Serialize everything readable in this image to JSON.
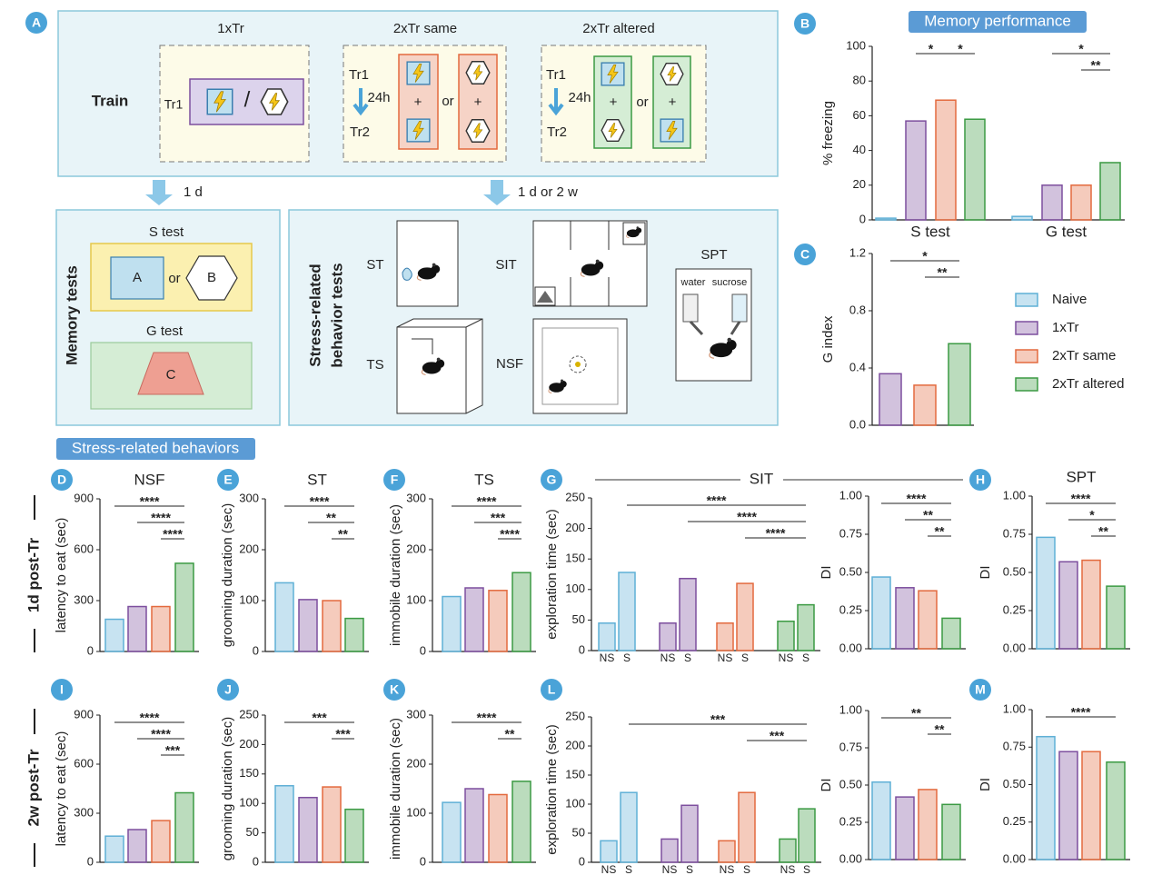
{
  "headers": {
    "memory": "Memory performance",
    "stress": "Stress-related behaviors",
    "row1": "1d post-Tr",
    "row2": "2w post-Tr"
  },
  "diagram": {
    "panel": "A",
    "train": "Train",
    "conditions": [
      {
        "title": "1xTr",
        "trials": [
          "Tr1"
        ]
      },
      {
        "title": "2xTr same",
        "trials": [
          "Tr1",
          "Tr2"
        ],
        "interval": "24h"
      },
      {
        "title": "2xTr altered",
        "trials": [
          "Tr1",
          "Tr2"
        ],
        "interval": "24h"
      }
    ],
    "or": "or",
    "plus": "+",
    "slash": "/",
    "delays": [
      "1 d",
      "1 d or 2 w"
    ],
    "memory_tests": {
      "title": "Memory tests",
      "s_test": "S test",
      "g_test": "G test",
      "contexts": [
        "A",
        "B",
        "C"
      ]
    },
    "stress_tests": {
      "title": [
        "Stress-related",
        "behavior tests"
      ],
      "tests": [
        "ST",
        "SIT",
        "SPT",
        "TS",
        "NSF"
      ],
      "spt_bottles": [
        "water",
        "sucrose"
      ]
    }
  },
  "chart_data": [
    {
      "type": "bar",
      "panel": "B",
      "ylabel": "% freezing",
      "categories": [
        "S test",
        "G test"
      ],
      "series": [
        {
          "name": "Naive",
          "color": "#5fb0d6",
          "values": [
            1,
            2
          ]
        },
        {
          "name": "1xTr",
          "color": "#7d4f9e",
          "values": [
            57,
            20
          ]
        },
        {
          "name": "2xTr same",
          "color": "#e36a3e",
          "values": [
            69,
            20
          ]
        },
        {
          "name": "2xTr altered",
          "color": "#3b9a43",
          "values": [
            58,
            33
          ]
        }
      ],
      "ylim": [
        0,
        100
      ],
      "yticks": [
        0,
        20,
        40,
        60,
        80,
        100
      ],
      "significance": [
        {
          "label": "*",
          "from": 1,
          "to": 2
        },
        {
          "label": "*",
          "from": 2,
          "to": 3
        },
        {
          "label": "*",
          "from": 5,
          "to": 7
        },
        {
          "label": "**",
          "from": 6,
          "to": 7
        }
      ]
    },
    {
      "type": "bar",
      "panel": "C",
      "ylabel": "G index",
      "categories": [
        null,
        null,
        null
      ],
      "values": [
        0.36,
        0.28,
        0.57
      ],
      "colors": [
        "#7d4f9e",
        "#e36a3e",
        "#3b9a43"
      ],
      "ylim": [
        0,
        1.2
      ],
      "yticks": [
        {
          "value": 0,
          "label": "0.0"
        },
        0.4,
        0.8,
        1.2
      ],
      "significance": [
        {
          "label": "*",
          "from": 0,
          "to": 2
        },
        {
          "label": "**",
          "from": 1,
          "to": 2
        }
      ]
    },
    {
      "type": "bar",
      "panel": "D",
      "title": "NSF",
      "ylabel": "latency to eat (sec)",
      "categories": [
        null,
        null,
        null,
        null
      ],
      "values": [
        190,
        265,
        265,
        520
      ],
      "colors": [
        "#5fb0d6",
        "#7d4f9e",
        "#e36a3e",
        "#3b9a43"
      ],
      "ylim": [
        0,
        900
      ],
      "yticks": [
        0,
        300,
        600,
        900
      ],
      "significance": [
        {
          "label": "****",
          "from": 0,
          "to": 3
        },
        {
          "label": "****",
          "from": 1,
          "to": 3
        },
        {
          "label": "****",
          "from": 2,
          "to": 3
        }
      ]
    },
    {
      "type": "bar",
      "panel": "E",
      "title": "ST",
      "ylabel": "grooming duration (sec)",
      "categories": [
        null,
        null,
        null,
        null
      ],
      "values": [
        135,
        102,
        100,
        65
      ],
      "colors": [
        "#5fb0d6",
        "#7d4f9e",
        "#e36a3e",
        "#3b9a43"
      ],
      "ylim": [
        0,
        300
      ],
      "yticks": [
        0,
        100,
        200,
        300
      ],
      "significance": [
        {
          "label": "****",
          "from": 0,
          "to": 3
        },
        {
          "label": "**",
          "from": 1,
          "to": 3
        },
        {
          "label": "**",
          "from": 2,
          "to": 3
        }
      ]
    },
    {
      "type": "bar",
      "panel": "F",
      "title": "TS",
      "ylabel": "immobile duration (sec)",
      "categories": [
        null,
        null,
        null,
        null
      ],
      "values": [
        108,
        125,
        120,
        155
      ],
      "colors": [
        "#5fb0d6",
        "#7d4f9e",
        "#e36a3e",
        "#3b9a43"
      ],
      "ylim": [
        0,
        300
      ],
      "yticks": [
        0,
        100,
        200,
        300
      ],
      "significance": [
        {
          "label": "****",
          "from": 0,
          "to": 3
        },
        {
          "label": "***",
          "from": 1,
          "to": 3
        },
        {
          "label": "****",
          "from": 2,
          "to": 3
        }
      ]
    },
    {
      "type": "bar",
      "panel": "G",
      "title": "SIT",
      "ylabel": "exploration time (sec)",
      "categories": [
        "NS",
        "S",
        "NS",
        "S",
        "NS",
        "S",
        "NS",
        "S"
      ],
      "values": [
        45,
        128,
        45,
        118,
        45,
        110,
        48,
        75
      ],
      "colors": [
        "#5fb0d6",
        "#5fb0d6",
        "#7d4f9e",
        "#7d4f9e",
        "#e36a3e",
        "#e36a3e",
        "#3b9a43",
        "#3b9a43"
      ],
      "ylim": [
        0,
        250
      ],
      "yticks": [
        0,
        50,
        100,
        150,
        200,
        250
      ],
      "significance": [
        {
          "label": "****",
          "from": 1,
          "to": 7
        },
        {
          "label": "****",
          "from": 3,
          "to": 7
        },
        {
          "label": "****",
          "from": 5,
          "to": 7
        }
      ]
    },
    {
      "type": "bar",
      "ylabel": "DI",
      "categories": [
        null,
        null,
        null,
        null
      ],
      "values": [
        0.47,
        0.4,
        0.38,
        0.2
      ],
      "colors": [
        "#5fb0d6",
        "#7d4f9e",
        "#e36a3e",
        "#3b9a43"
      ],
      "ylim": [
        0,
        1
      ],
      "yticks": [
        {
          "value": 0,
          "label": "0.00"
        },
        0.25,
        {
          "value": 0.5,
          "label": "0.50"
        },
        0.75,
        {
          "value": 1,
          "label": "1.00"
        }
      ],
      "significance": [
        {
          "label": "****",
          "from": 0,
          "to": 3
        },
        {
          "label": "**",
          "from": 1,
          "to": 3
        },
        {
          "label": "**",
          "from": 2,
          "to": 3
        }
      ]
    },
    {
      "type": "bar",
      "panel": "H",
      "title": "SPT",
      "ylabel": "DI",
      "categories": [
        null,
        null,
        null,
        null
      ],
      "values": [
        0.73,
        0.57,
        0.58,
        0.41
      ],
      "colors": [
        "#5fb0d6",
        "#7d4f9e",
        "#e36a3e",
        "#3b9a43"
      ],
      "ylim": [
        0,
        1
      ],
      "yticks": [
        {
          "value": 0,
          "label": "0.00"
        },
        0.25,
        {
          "value": 0.5,
          "label": "0.50"
        },
        0.75,
        {
          "value": 1,
          "label": "1.00"
        }
      ],
      "significance": [
        {
          "label": "****",
          "from": 0,
          "to": 3
        },
        {
          "label": "*",
          "from": 1,
          "to": 3
        },
        {
          "label": "**",
          "from": 2,
          "to": 3
        }
      ]
    },
    {
      "type": "bar",
      "panel": "I",
      "ylabel": "latency to eat (sec)",
      "categories": [
        null,
        null,
        null,
        null
      ],
      "values": [
        160,
        200,
        255,
        425
      ],
      "colors": [
        "#5fb0d6",
        "#7d4f9e",
        "#e36a3e",
        "#3b9a43"
      ],
      "ylim": [
        0,
        900
      ],
      "yticks": [
        0,
        300,
        600,
        900
      ],
      "significance": [
        {
          "label": "****",
          "from": 0,
          "to": 3
        },
        {
          "label": "****",
          "from": 1,
          "to": 3
        },
        {
          "label": "***",
          "from": 2,
          "to": 3
        }
      ]
    },
    {
      "type": "bar",
      "panel": "J",
      "ylabel": "grooming duration (sec)",
      "categories": [
        null,
        null,
        null,
        null
      ],
      "values": [
        130,
        110,
        128,
        90
      ],
      "colors": [
        "#5fb0d6",
        "#7d4f9e",
        "#e36a3e",
        "#3b9a43"
      ],
      "ylim": [
        0,
        250
      ],
      "yticks": [
        0,
        50,
        100,
        150,
        200,
        250
      ],
      "significance": [
        {
          "label": "***",
          "from": 0,
          "to": 3
        },
        {
          "label": "***",
          "from": 2,
          "to": 3
        }
      ]
    },
    {
      "type": "bar",
      "panel": "K",
      "ylabel": "immobile duration (sec)",
      "categories": [
        null,
        null,
        null,
        null
      ],
      "values": [
        122,
        150,
        138,
        165
      ],
      "colors": [
        "#5fb0d6",
        "#7d4f9e",
        "#e36a3e",
        "#3b9a43"
      ],
      "ylim": [
        0,
        300
      ],
      "yticks": [
        0,
        100,
        200,
        300
      ],
      "significance": [
        {
          "label": "****",
          "from": 0,
          "to": 3
        },
        {
          "label": "**",
          "from": 2,
          "to": 3
        }
      ]
    },
    {
      "type": "bar",
      "panel": "L",
      "ylabel": "exploration time (sec)",
      "categories": [
        "NS",
        "S",
        "NS",
        "S",
        "NS",
        "S",
        "NS",
        "S"
      ],
      "values": [
        37,
        120,
        40,
        98,
        37,
        120,
        40,
        92
      ],
      "colors": [
        "#5fb0d6",
        "#5fb0d6",
        "#7d4f9e",
        "#7d4f9e",
        "#e36a3e",
        "#e36a3e",
        "#3b9a43",
        "#3b9a43"
      ],
      "ylim": [
        0,
        250
      ],
      "yticks": [
        0,
        50,
        100,
        150,
        200,
        250
      ],
      "significance": [
        {
          "label": "***",
          "from": 1,
          "to": 7
        },
        {
          "label": "***",
          "from": 5,
          "to": 7
        }
      ]
    },
    {
      "type": "bar",
      "ylabel": "DI",
      "categories": [
        null,
        null,
        null,
        null
      ],
      "values": [
        0.52,
        0.42,
        0.47,
        0.37
      ],
      "colors": [
        "#5fb0d6",
        "#7d4f9e",
        "#e36a3e",
        "#3b9a43"
      ],
      "ylim": [
        0,
        1
      ],
      "yticks": [
        {
          "value": 0,
          "label": "0.00"
        },
        0.25,
        {
          "value": 0.5,
          "label": "0.50"
        },
        0.75,
        {
          "value": 1,
          "label": "1.00"
        }
      ],
      "significance": [
        {
          "label": "**",
          "from": 0,
          "to": 3
        },
        {
          "label": "**",
          "from": 2,
          "to": 3
        }
      ]
    },
    {
      "type": "bar",
      "panel": "M",
      "ylabel": "DI",
      "categories": [
        null,
        null,
        null,
        null
      ],
      "values": [
        0.82,
        0.72,
        0.72,
        0.65
      ],
      "colors": [
        "#5fb0d6",
        "#7d4f9e",
        "#e36a3e",
        "#3b9a43"
      ],
      "ylim": [
        0,
        1
      ],
      "yticks": [
        {
          "value": 0,
          "label": "0.00"
        },
        0.25,
        {
          "value": 0.5,
          "label": "0.50"
        },
        0.75,
        {
          "value": 1,
          "label": "1.00"
        }
      ],
      "significance": [
        {
          "label": "****",
          "from": 0,
          "to": 3
        }
      ]
    }
  ]
}
